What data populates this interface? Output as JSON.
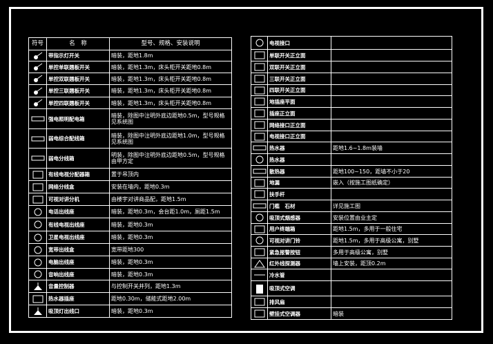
{
  "colors": {
    "background": "#000000",
    "lines": "#ffffff"
  },
  "left_table": {
    "headers": {
      "symbol": "符号",
      "name": "名　称",
      "spec": "型号、规格、安装说明"
    },
    "rows": [
      {
        "icon": "switch-indicator-icon",
        "name": "带指示灯开关",
        "spec": "暗装，距地1.8m"
      },
      {
        "icon": "single-switch-icon",
        "name": "单控单联翘板开关",
        "spec": "暗装，距地1.3m，床头柜开关距地0.8m"
      },
      {
        "icon": "double-switch-icon",
        "name": "单控双联翘板开关",
        "spec": "暗装，距地1.3m，床头柜开关距地0.8m"
      },
      {
        "icon": "triple-switch-icon",
        "name": "单控三联翘板开关",
        "spec": "暗装，距地1.3m，床头柜开关距地0.8m"
      },
      {
        "icon": "quad-switch-icon",
        "name": "单控四联翘板开关",
        "spec": "暗装，距地1.3m，床头柜开关距地0.8m"
      },
      {
        "icon": "distribution-box-icon",
        "name": "强电照明配电箱",
        "spec": "暗装，除图中注明外底边距地0.5m，型号规格见系统图"
      },
      {
        "icon": "wiring-box-icon",
        "name": "弱电综合配线箱",
        "spec": "暗装，除图中注明外底边距地1.0m，型号规格见系统图"
      },
      {
        "icon": "junction-box-icon",
        "name": "弱电分线箱",
        "spec": "明装，除图中注明外底边距地0.5m，型号规格由甲方定"
      },
      {
        "icon": "tv-splitter-icon",
        "name": "有线电视分配器箱",
        "spec": "置于吊顶内"
      },
      {
        "icon": "network-box-icon",
        "name": "网络分线盒",
        "spec": "安装在墙内，距地0.3m"
      },
      {
        "icon": "intercom-icon",
        "name": "可视对讲分机",
        "spec": "由楼宇对讲商品配，距地1.5m"
      },
      {
        "icon": "phone-outlet-icon",
        "name": "电话出线座",
        "spec": "暗装，距地0.3m，会台距1.0m，厕距1.5m"
      },
      {
        "icon": "tv-outlet-icon",
        "name": "有线电视出线座",
        "spec": "暗装，距地0.3m"
      },
      {
        "icon": "satellite-outlet-icon",
        "name": "卫星电视出线座",
        "spec": "暗装，距地0.3m"
      },
      {
        "icon": "broadband-outlet-icon",
        "name": "宽带出线盒",
        "spec": "宽带距地300"
      },
      {
        "icon": "computer-outlet-icon",
        "name": "电脑出线座",
        "spec": "暗装，距地0.3m"
      },
      {
        "icon": "audio-outlet-icon",
        "name": "音响出线座",
        "spec": "暗装，距地0.3m"
      },
      {
        "icon": "volume-control-icon",
        "name": "音量控制器",
        "spec": "与控制开关并列，距地1.3m"
      },
      {
        "icon": "heater-socket-icon",
        "name": "热水器插座",
        "spec": "距地0.30m，储能式距地2.00m"
      },
      {
        "icon": "ceiling-light-icon",
        "name": "吸顶灯出线口",
        "spec": "暗装，距地0.3m"
      }
    ]
  },
  "right_table": {
    "rows": [
      {
        "icon": "tv-jack-icon",
        "name": "电视接口",
        "spec": ""
      },
      {
        "icon": "single-gang-elevation-icon",
        "name": "单联开关正立面",
        "spec": ""
      },
      {
        "icon": "double-gang-elevation-icon",
        "name": "双联开关正立面",
        "spec": ""
      },
      {
        "icon": "triple-gang-elevation-icon",
        "name": "三联开关正立面",
        "spec": ""
      },
      {
        "icon": "quad-gang-elevation-icon",
        "name": "四联开关正立面",
        "spec": ""
      },
      {
        "icon": "floor-socket-icon",
        "name": "地插座平面",
        "spec": ""
      },
      {
        "icon": "socket-elevation-icon",
        "name": "插座正立面",
        "spec": ""
      },
      {
        "icon": "network-jack-elevation-icon",
        "name": "网络接口正立面",
        "spec": ""
      },
      {
        "icon": "tv-jack-elevation-icon",
        "name": "电视接口正立面",
        "spec": ""
      },
      {
        "icon": "water-heater-icon",
        "name": "热水器",
        "spec": "距地1.6~1.8m装墙"
      },
      {
        "icon": "water-heater-round-icon",
        "name": "热水器",
        "spec": ""
      },
      {
        "icon": "radiator-icon",
        "name": "散热器",
        "spec": "距地100~150，距墙不小于20"
      },
      {
        "icon": "floor-drain-grid-icon",
        "name": "地漏",
        "spec": "嵌入（按施工图纸确定）"
      },
      {
        "icon": "handrail-icon",
        "name": "扶手杆",
        "spec": ""
      },
      {
        "icon": "threshold-icon",
        "name": "门槛　石材",
        "spec": "详见施工图"
      },
      {
        "icon": "smoke-detector-icon",
        "name": "吸顶式烟感器",
        "spec": "安装位置由业主定"
      },
      {
        "icon": "terminal-box-icon",
        "name": "用户终端箱",
        "spec": "距地1.5m，多用于一般住宅"
      },
      {
        "icon": "video-doorbell-icon",
        "name": "可视对讲门铃",
        "spec": "距地1.5m，多用于高级公寓，别墅"
      },
      {
        "icon": "alarm-button-icon",
        "name": "紧急报警按钮",
        "spec": "多用于高级公寓，别墅"
      },
      {
        "icon": "infrared-detector-icon",
        "name": "红外线探测器",
        "spec": "墙上安装，距顶0.2m"
      },
      {
        "icon": "cold-water-pipe-icon",
        "name": "冷水管",
        "spec": ""
      },
      {
        "icon": "ceiling-ac-icon",
        "name": "吸顶式空调",
        "spec": ""
      },
      {
        "icon": "exhaust-fan-icon",
        "name": "排风扇",
        "spec": ""
      },
      {
        "icon": "wall-ac-icon",
        "name": "壁挂式空调器",
        "spec": "暗装"
      }
    ]
  }
}
